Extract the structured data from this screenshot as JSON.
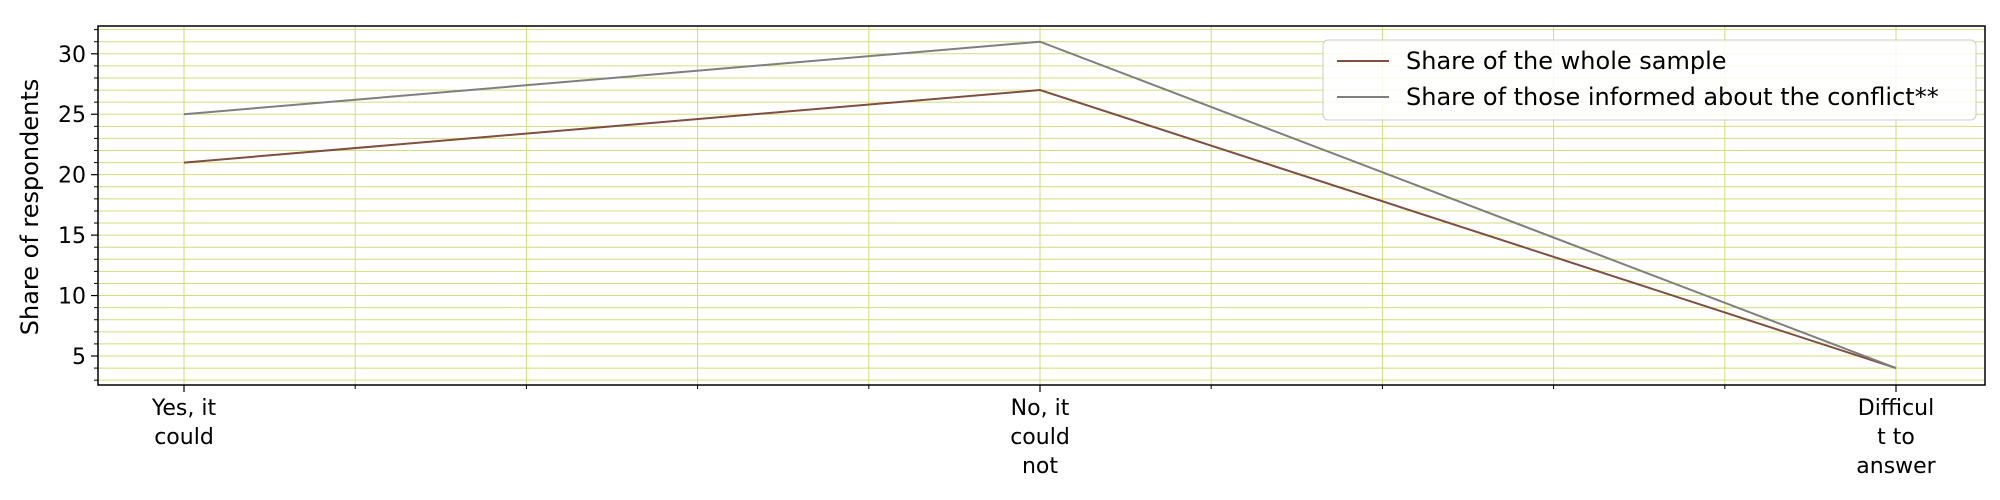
{
  "chart_data": {
    "type": "line",
    "title": "",
    "xlabel": "",
    "ylabel": "Share of respondents",
    "categories": [
      "Yes, it could",
      "No, it could not",
      "Difficult to answer"
    ],
    "category_lines": [
      [
        "Yes, it",
        "could"
      ],
      [
        "No, it",
        "could",
        "not"
      ],
      [
        "Difficul",
        "t to",
        "answer"
      ]
    ],
    "series": [
      {
        "name": "Share of the whole sample",
        "color": "#7f4f3f",
        "values": [
          21,
          27,
          4
        ]
      },
      {
        "name": "Share of those informed about the conflict**",
        "color": "#7f7f7f",
        "values": [
          25,
          31,
          4
        ]
      }
    ],
    "ylim": [
      2.6,
      32.3
    ],
    "yticks": [
      5,
      10,
      15,
      20,
      25,
      30
    ],
    "grid": true,
    "grid_color": "#d4dc7a",
    "legend_position": "top-right"
  }
}
